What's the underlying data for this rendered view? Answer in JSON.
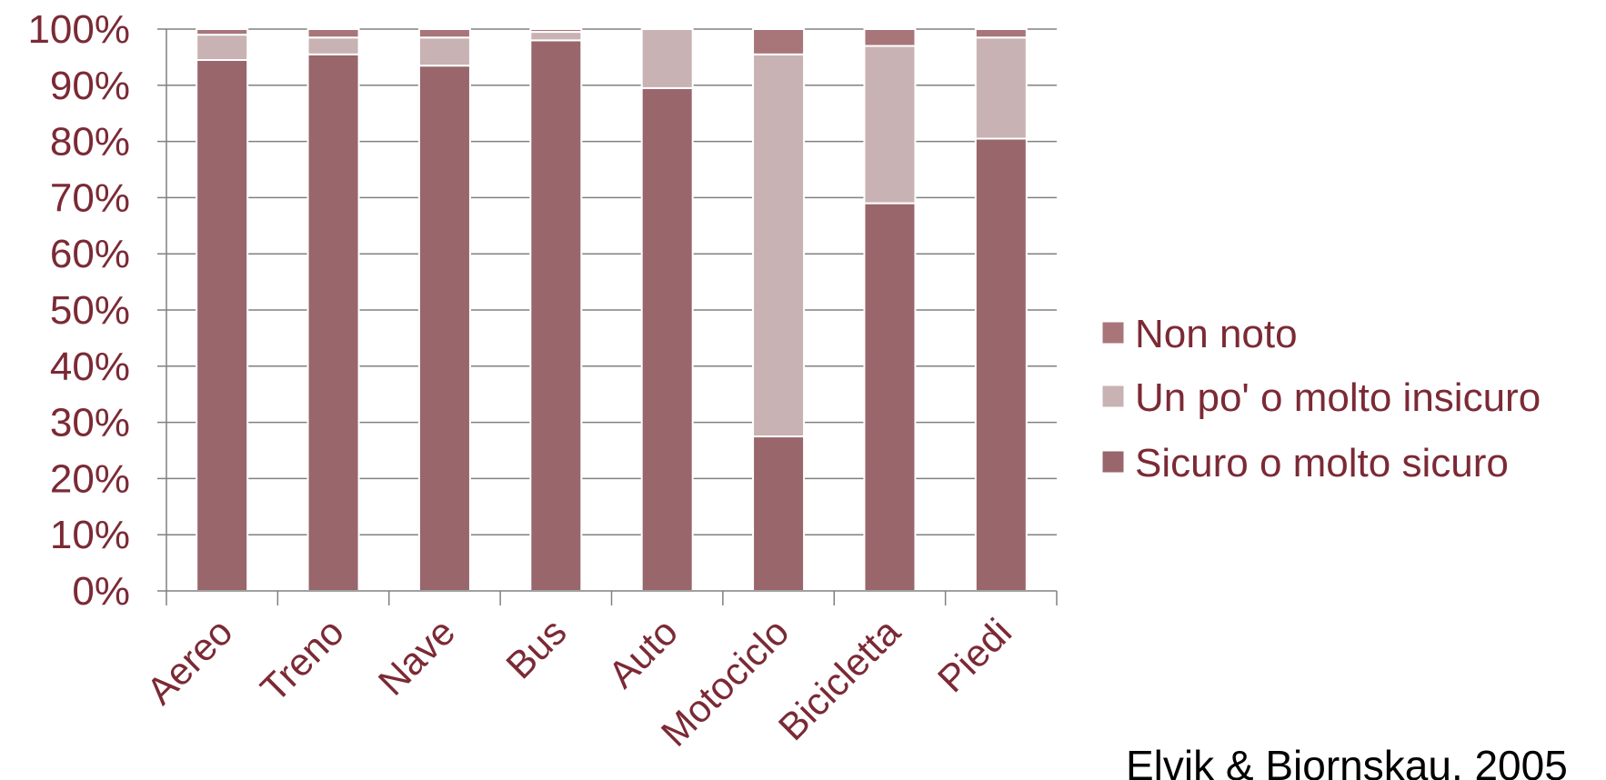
{
  "chart_data": {
    "type": "bar",
    "stacked": true,
    "categories": [
      "Aereo",
      "Treno",
      "Nave",
      "Bus",
      "Auto",
      "Motociclo",
      "Bicicletta",
      "Piedi"
    ],
    "series": [
      {
        "name": "Sicuro o molto sicuro",
        "color": "#98666b",
        "values": [
          94.5,
          95.5,
          93.5,
          98,
          89.5,
          27.5,
          69,
          80.5
        ]
      },
      {
        "name": "Un po' o molto insicuro",
        "color": "#c8b2b3",
        "values": [
          4.5,
          3,
          5,
          1.5,
          10.5,
          68,
          28,
          18
        ]
      },
      {
        "name": "Non noto",
        "color": "#a87679",
        "values": [
          1,
          1.5,
          1.5,
          0.5,
          0,
          4.5,
          3,
          1.5
        ]
      }
    ],
    "yticks": [
      "0%",
      "10%",
      "20%",
      "30%",
      "40%",
      "50%",
      "60%",
      "70%",
      "80%",
      "90%",
      "100%"
    ],
    "ylim": [
      0,
      100
    ],
    "grid": true,
    "legend_position": "right",
    "legend_order": [
      "Non noto",
      "Un po' o molto insicuro",
      "Sicuro o molto sicuro"
    ],
    "source_note": "Elvik & Bjornskau, 2005",
    "axis_color": "#808080",
    "text_color": "#7b2a35"
  }
}
